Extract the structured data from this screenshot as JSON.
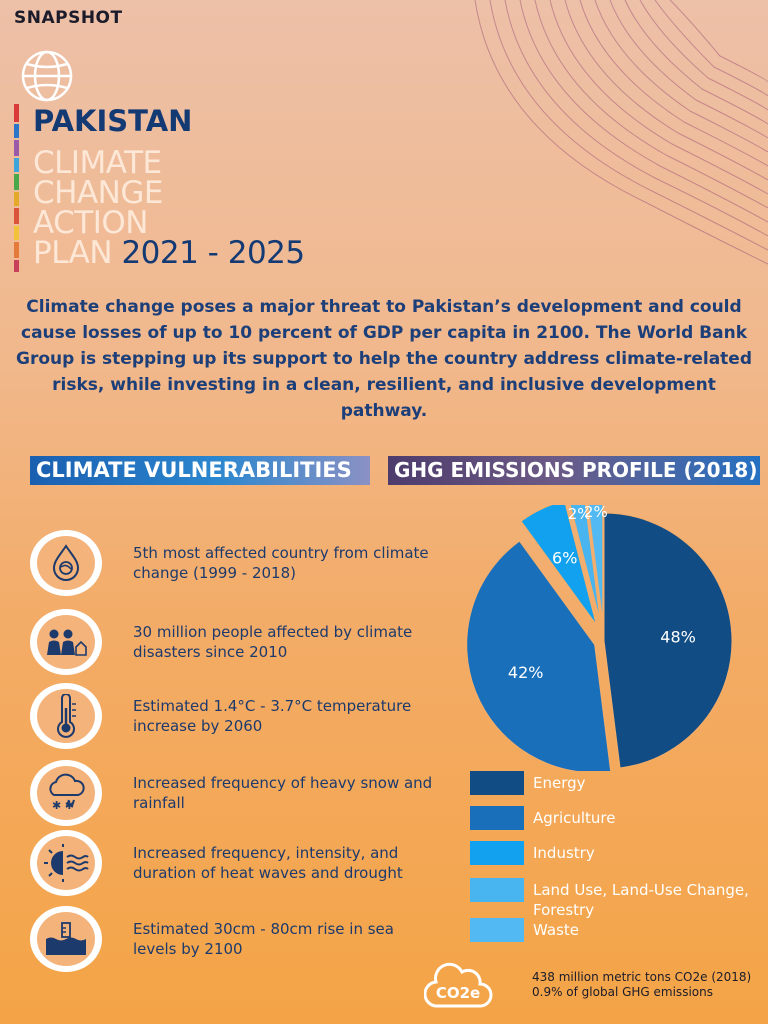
{
  "header": {
    "label": "SNAPSHOT",
    "country": "PAKISTAN",
    "title_lines": [
      "CLIMATE",
      "CHANGE",
      "ACTION"
    ],
    "title_plan": "PLAN",
    "title_years": "2021 - 2025"
  },
  "intro": "Climate change poses a major threat to Pakistan’s development and could cause losses of up to 10 percent of GDP per capita in 2100. The World Bank Group is stepping up its support to help the country address climate-related risks, while investing in a clean, resilient, and inclusive development pathway.",
  "vulnerabilities": {
    "heading": "CLIMATE VULNERABILITIES",
    "items": [
      {
        "icon": "globe-drop-icon",
        "text": "5th most affected country from climate change (1999 - 2018)"
      },
      {
        "icon": "people-house-icon",
        "text": "30 million people affected by climate disasters since 2010"
      },
      {
        "icon": "thermometer-icon",
        "text": "Estimated 1.4°C - 3.7°C temperature increase by 2060"
      },
      {
        "icon": "snow-cloud-icon",
        "text": "Increased frequency of heavy snow and rainfall"
      },
      {
        "icon": "sun-waves-icon",
        "text": "Increased frequency, intensity, and duration of heat waves and drought"
      },
      {
        "icon": "sea-level-icon",
        "text": "Estimated 30cm - 80cm rise in sea levels by 2100"
      }
    ]
  },
  "chart_data": {
    "type": "pie",
    "title": "GHG EMISSIONS PROFILE (2018)",
    "categories": [
      "Energy",
      "Agriculture",
      "Industry",
      "Land Use, Land-Use Change, Forestry",
      "Waste"
    ],
    "values": [
      48,
      42,
      6,
      2,
      2
    ],
    "labels": [
      "48%",
      "42%",
      "6%",
      "2%",
      "2%"
    ],
    "colors": [
      "#114c85",
      "#1a6fba",
      "#12a1ee",
      "#48b4f0",
      "#52b9f2"
    ],
    "legend_position": "bottom"
  },
  "footnote": {
    "icon_label": "CO2e",
    "line1": "438 million metric tons CO2e (2018)",
    "line2": "0.9% of global GHG emissions"
  }
}
